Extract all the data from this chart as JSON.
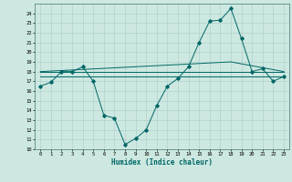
{
  "xlabel": "Humidex (Indice chaleur)",
  "xlim": [
    -0.5,
    23.5
  ],
  "ylim": [
    10,
    25
  ],
  "yticks": [
    10,
    11,
    12,
    13,
    14,
    15,
    16,
    17,
    18,
    19,
    20,
    21,
    22,
    23,
    24
  ],
  "xticks": [
    0,
    1,
    2,
    3,
    4,
    5,
    6,
    7,
    8,
    9,
    10,
    11,
    12,
    13,
    14,
    15,
    16,
    17,
    18,
    19,
    20,
    21,
    22,
    23
  ],
  "bg_color": "#cce8e0",
  "grid_color": "#aacccc",
  "line_color": "#006666",
  "line1_x": [
    0,
    1,
    2,
    3,
    4,
    5,
    6,
    7,
    8,
    9,
    10,
    11,
    12,
    13,
    14,
    15,
    16,
    17,
    18,
    19,
    20,
    21,
    22,
    23
  ],
  "line1_y": [
    16.5,
    16.9,
    18.0,
    18.0,
    18.5,
    17.0,
    13.5,
    13.2,
    10.5,
    11.1,
    12.0,
    14.5,
    16.5,
    17.3,
    18.5,
    21.0,
    23.2,
    23.3,
    24.5,
    21.4,
    18.0,
    18.3,
    17.0,
    17.5
  ],
  "line2_x": [
    0,
    23
  ],
  "line2_y": [
    18.0,
    18.0
  ],
  "line3_x": [
    0,
    18,
    23
  ],
  "line3_y": [
    18.0,
    19.0,
    18.0
  ],
  "line4_x": [
    0,
    23
  ],
  "line4_y": [
    17.5,
    17.5
  ]
}
